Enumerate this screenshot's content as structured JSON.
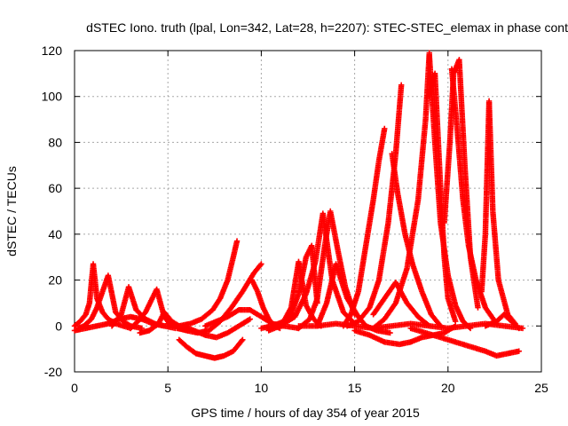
{
  "chart_data": {
    "type": "scatter",
    "title": "dSTEC Iono. truth (lpal, Lon=342, Lat=28, h=2207): STEC-STEC_elemax in phase cont",
    "xlabel": "GPS time / hours of day 354 of year 2015",
    "ylabel": "dSTEC  / TECUs",
    "xlim": [
      0,
      25
    ],
    "ylim": [
      -20,
      120
    ],
    "xticks": [
      0,
      5,
      10,
      15,
      20,
      25
    ],
    "yticks": [
      -20,
      0,
      20,
      40,
      60,
      80,
      100,
      120
    ],
    "grid": true,
    "marker": "+",
    "color": "#ff0000",
    "series": [
      {
        "x": [
          0.0,
          0.3,
          0.6,
          0.8,
          1.0,
          1.2,
          1.5,
          1.8,
          2.2,
          2.6,
          3.0
        ],
        "y": [
          0,
          2,
          5,
          10,
          27,
          12,
          6,
          3,
          1,
          0,
          -1
        ]
      },
      {
        "x": [
          0.2,
          0.5,
          0.9,
          1.2,
          1.5,
          1.8,
          2.2,
          2.6,
          3.0,
          3.6
        ],
        "y": [
          -1,
          0,
          3,
          8,
          15,
          22,
          6,
          2,
          0,
          -1
        ]
      },
      {
        "x": [
          0.0,
          0.6,
          1.2,
          1.8,
          2.4,
          3.0,
          3.6,
          4.2,
          4.8,
          5.4
        ],
        "y": [
          -2,
          -1,
          0,
          1,
          3,
          4,
          3,
          1,
          0,
          -1
        ]
      },
      {
        "x": [
          2.0,
          2.5,
          2.9,
          3.3,
          3.8,
          4.3,
          4.8
        ],
        "y": [
          0,
          5,
          17,
          7,
          3,
          1,
          0
        ]
      },
      {
        "x": [
          3.0,
          3.4,
          3.8,
          4.1,
          4.4,
          4.8,
          5.2
        ],
        "y": [
          -1,
          2,
          6,
          11,
          16,
          4,
          0
        ]
      },
      {
        "x": [
          3.5,
          4.0,
          4.5,
          4.8,
          5.2,
          5.6,
          6.0
        ],
        "y": [
          -3,
          -2,
          1,
          6,
          2,
          0,
          -1
        ]
      },
      {
        "x": [
          5.0,
          5.6,
          6.2,
          6.8,
          7.4,
          7.8,
          8.2,
          8.5,
          8.7
        ],
        "y": [
          1,
          0,
          1,
          3,
          7,
          12,
          20,
          30,
          37
        ]
      },
      {
        "x": [
          5.5,
          6.0,
          6.6,
          7.2,
          7.8,
          8.4,
          9.0,
          9.6,
          10.0
        ],
        "y": [
          -1,
          -2,
          -3,
          -2,
          2,
          8,
          15,
          23,
          27
        ]
      },
      {
        "x": [
          5.6,
          6.0,
          6.5,
          7.0,
          7.5,
          8.0,
          8.5,
          9.0
        ],
        "y": [
          -6,
          -9,
          -12,
          -13,
          -14,
          -13,
          -11,
          -6
        ]
      },
      {
        "x": [
          5.8,
          6.4,
          7.0,
          7.6,
          8.2,
          8.8,
          9.4
        ],
        "y": [
          0,
          -2,
          -4,
          -5,
          -3,
          0,
          3
        ]
      },
      {
        "x": [
          7.0,
          7.6,
          8.2,
          8.8,
          9.4,
          10.0,
          10.6,
          11.2,
          12.0
        ],
        "y": [
          0,
          2,
          4,
          7,
          7,
          4,
          1,
          0,
          -1
        ]
      },
      {
        "x": [
          9.5,
          9.8,
          10.1,
          10.4,
          10.7,
          11.0
        ],
        "y": [
          20,
          15,
          8,
          3,
          0,
          -1
        ]
      },
      {
        "x": [
          10.0,
          10.6,
          11.2,
          11.6,
          12.0,
          12.4,
          12.8,
          13.2
        ],
        "y": [
          -1,
          0,
          2,
          8,
          28,
          9,
          3,
          0
        ]
      },
      {
        "x": [
          10.4,
          11.0,
          11.6,
          12.0,
          12.4,
          12.7,
          13.0
        ],
        "y": [
          -2,
          0,
          5,
          14,
          30,
          35,
          10
        ]
      },
      {
        "x": [
          11.0,
          11.8,
          12.4,
          12.9,
          13.3,
          13.8,
          14.4,
          15.0
        ],
        "y": [
          0,
          4,
          14,
          28,
          49,
          20,
          6,
          1
        ]
      },
      {
        "x": [
          12.0,
          12.6,
          13.0,
          13.4,
          13.7,
          14.1,
          14.5,
          15.0
        ],
        "y": [
          -1,
          3,
          12,
          35,
          50,
          33,
          17,
          5
        ]
      },
      {
        "x": [
          13.0,
          13.5,
          14.0,
          14.6,
          15.2,
          15.6,
          16.2,
          16.9
        ],
        "y": [
          0,
          10,
          27,
          12,
          4,
          0,
          -2,
          -3
        ]
      },
      {
        "x": [
          14.4,
          14.8,
          15.2,
          15.6,
          16.0,
          16.3,
          16.6
        ],
        "y": [
          0,
          5,
          15,
          35,
          55,
          72,
          86
        ]
      },
      {
        "x": [
          14.6,
          15.2,
          15.8,
          16.3,
          16.8,
          17.2,
          17.5
        ],
        "y": [
          0,
          2,
          8,
          20,
          45,
          75,
          105
        ]
      },
      {
        "x": [
          17.0,
          17.3,
          17.7,
          18.1,
          18.6,
          19.1,
          19.6
        ],
        "y": [
          75,
          58,
          40,
          27,
          15,
          5,
          0
        ]
      },
      {
        "x": [
          16.0,
          16.6,
          17.2,
          17.8,
          18.4,
          18.8,
          19.0
        ],
        "y": [
          -1,
          3,
          10,
          25,
          55,
          90,
          119
        ]
      },
      {
        "x": [
          19.0,
          19.3,
          19.6,
          20.0,
          20.4,
          20.8,
          21.2
        ],
        "y": [
          118,
          80,
          45,
          22,
          9,
          2,
          -1
        ]
      },
      {
        "x": [
          19.0,
          19.3,
          19.6,
          19.8,
          20.0,
          20.4
        ],
        "y": [
          100,
          110,
          60,
          30,
          12,
          2
        ]
      },
      {
        "x": [
          19.8,
          20.1,
          20.3,
          20.6,
          20.9,
          21.2,
          21.6
        ],
        "y": [
          45,
          80,
          110,
          116,
          70,
          30,
          8
        ]
      },
      {
        "x": [
          20.2,
          20.5,
          20.8,
          21.1,
          21.5,
          22.0,
          22.6
        ],
        "y": [
          112,
          85,
          55,
          35,
          20,
          8,
          1
        ]
      },
      {
        "x": [
          21.8,
          22.0,
          22.2,
          22.4,
          22.7,
          23.2,
          23.6
        ],
        "y": [
          15,
          40,
          98,
          50,
          20,
          5,
          1
        ]
      },
      {
        "x": [
          18.0,
          18.8,
          19.6,
          20.4,
          21.2,
          22.0,
          22.6,
          23.2,
          23.8
        ],
        "y": [
          -1,
          -3,
          -5,
          -7,
          -9,
          -11,
          -13,
          -12,
          -11
        ]
      },
      {
        "x": [
          15.0,
          15.8,
          16.6,
          17.4,
          18.0,
          18.6,
          19.2,
          19.8,
          20.4
        ],
        "y": [
          -2,
          -4,
          -7,
          -8,
          -7,
          -5,
          -4,
          -3,
          0
        ]
      },
      {
        "x": [
          12.0,
          13.0,
          14.0,
          15.0,
          16.0,
          17.0,
          18.0,
          19.0,
          20.0,
          21.0,
          22.0,
          23.0,
          24.0
        ],
        "y": [
          0,
          0,
          1,
          0,
          -1,
          0,
          1,
          0,
          -1,
          0,
          1,
          0,
          -1
        ]
      },
      {
        "x": [
          22.0,
          22.6,
          23.0,
          23.4,
          23.8
        ],
        "y": [
          0,
          2,
          5,
          2,
          -1
        ]
      },
      {
        "x": [
          16.0,
          16.6,
          17.2,
          17.8,
          18.4,
          19.0
        ],
        "y": [
          5,
          12,
          19,
          10,
          4,
          0
        ]
      }
    ]
  }
}
